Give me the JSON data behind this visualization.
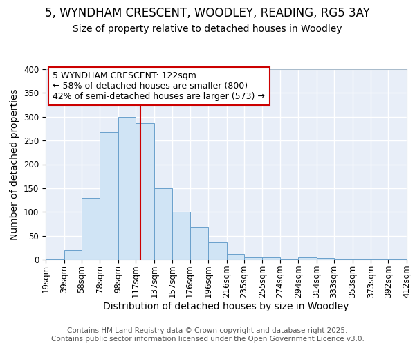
{
  "title_line1": "5, WYNDHAM CRESCENT, WOODLEY, READING, RG5 3AY",
  "title_line2": "Size of property relative to detached houses in Woodley",
  "xlabel": "Distribution of detached houses by size in Woodley",
  "ylabel": "Number of detached properties",
  "bin_edges": [
    19,
    39,
    58,
    78,
    98,
    117,
    137,
    157,
    176,
    196,
    216,
    235,
    255,
    274,
    294,
    314,
    333,
    353,
    373,
    392,
    412
  ],
  "bar_heights": [
    1,
    20,
    130,
    267,
    300,
    287,
    150,
    100,
    68,
    37,
    11,
    5,
    4,
    2,
    4,
    3,
    2,
    1,
    1,
    1
  ],
  "bar_color": "#d0e4f5",
  "bar_edge_color": "#6aa0cc",
  "property_size": 122,
  "vline_color": "#cc0000",
  "annotation_box_text": "5 WYNDHAM CRESCENT: 122sqm\n← 58% of detached houses are smaller (800)\n42% of semi-detached houses are larger (573) →",
  "annotation_box_edge_color": "#cc0000",
  "annotation_box_face_color": "#ffffff",
  "ylim": [
    0,
    400
  ],
  "yticks": [
    0,
    50,
    100,
    150,
    200,
    250,
    300,
    350,
    400
  ],
  "plot_bg_color": "#e8eef8",
  "fig_bg_color": "#ffffff",
  "grid_color": "#ffffff",
  "footer_text": "Contains HM Land Registry data © Crown copyright and database right 2025.\nContains public sector information licensed under the Open Government Licence v3.0.",
  "title_fontsize": 12,
  "subtitle_fontsize": 10,
  "axis_label_fontsize": 10,
  "tick_fontsize": 8.5,
  "annotation_fontsize": 9,
  "footer_fontsize": 7.5
}
